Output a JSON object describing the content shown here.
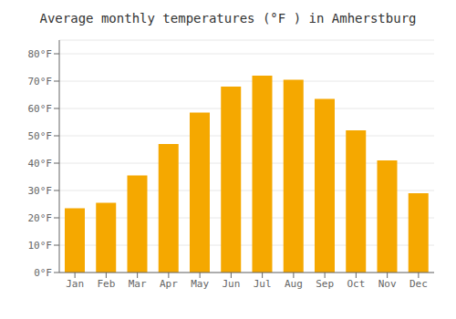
{
  "chart_data": {
    "type": "bar",
    "title": "Average monthly temperatures (°F ) in Amherstburg",
    "categories": [
      "Jan",
      "Feb",
      "Mar",
      "Apr",
      "May",
      "Jun",
      "Jul",
      "Aug",
      "Sep",
      "Oct",
      "Nov",
      "Dec"
    ],
    "values": [
      23.5,
      25.5,
      35.5,
      47.0,
      58.5,
      68.0,
      72.0,
      70.5,
      63.5,
      52.0,
      41.0,
      29.0
    ],
    "color": "#F5A800",
    "ylim": [
      0,
      85
    ],
    "yticks": [
      {
        "value": 0,
        "label": "0°F"
      },
      {
        "value": 10,
        "label": "10°F"
      },
      {
        "value": 20,
        "label": "20°F"
      },
      {
        "value": 30,
        "label": "30°F"
      },
      {
        "value": 40,
        "label": "40°F"
      },
      {
        "value": 50,
        "label": "50°F"
      },
      {
        "value": 60,
        "label": "60°F"
      },
      {
        "value": 70,
        "label": "70°F"
      },
      {
        "value": 80,
        "label": "80°F"
      }
    ],
    "grid": true
  }
}
